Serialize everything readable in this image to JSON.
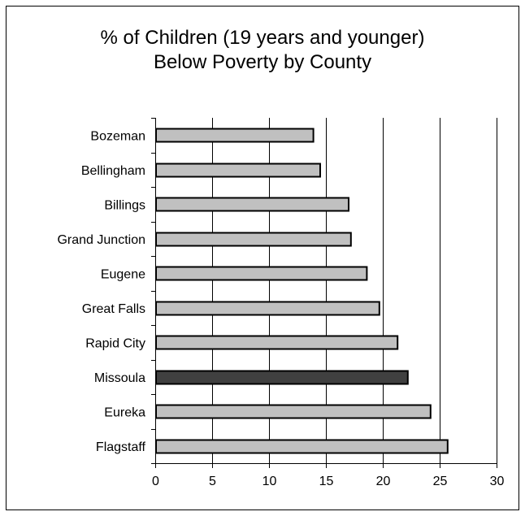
{
  "chart_data": {
    "type": "bar",
    "orientation": "horizontal",
    "title": "% of Children (19 years and younger)",
    "subtitle": "Below  Poverty by County",
    "categories": [
      "Bozeman",
      "Bellingham",
      "Billings",
      "Grand Junction",
      "Eugene",
      "Great Falls",
      "Rapid City",
      "Missoula",
      "Eureka",
      "Flagstaff"
    ],
    "values": [
      13.9,
      14.5,
      17.0,
      17.2,
      18.6,
      19.7,
      21.3,
      22.2,
      24.2,
      25.7
    ],
    "highlight": "Missoula",
    "x_ticks": [
      "0",
      "5",
      "10",
      "15",
      "20",
      "25",
      "30"
    ],
    "xlim": [
      0,
      30
    ],
    "xlabel": "",
    "ylabel": "",
    "grid": "vertical",
    "colors": {
      "bar": "#c0c0c0",
      "highlight": "#404040",
      "outline": "#000000",
      "grid": "#000000"
    }
  }
}
